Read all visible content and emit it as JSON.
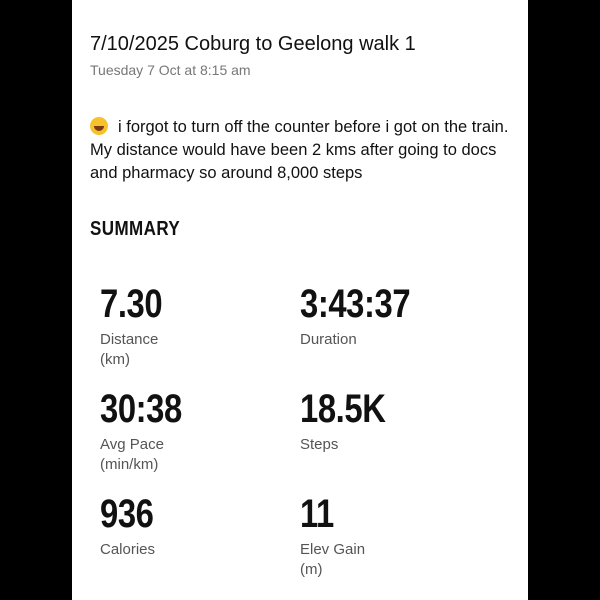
{
  "header": {
    "title": "7/10/2025 Coburg to Geelong walk 1",
    "subtitle": "Tuesday 7 Oct at 8:15 am"
  },
  "note": {
    "emoji_icon": "face-with-tears-of-joy",
    "text": "i forgot to turn off the counter before i got on the train. My distance would have been 2 kms after going to docs and pharmacy so around 8,000 steps"
  },
  "summary": {
    "heading": "SUMMARY",
    "stats": [
      {
        "value": "7.30",
        "label": "Distance (km)"
      },
      {
        "value": "3:43:37",
        "label": "Duration"
      },
      {
        "value": "30:38",
        "label": "Avg Pace (min/km)"
      },
      {
        "value": "18.5K",
        "label": "Steps"
      },
      {
        "value": "936",
        "label": "Calories"
      },
      {
        "value": "11",
        "label": "Elev Gain (m)"
      }
    ]
  }
}
